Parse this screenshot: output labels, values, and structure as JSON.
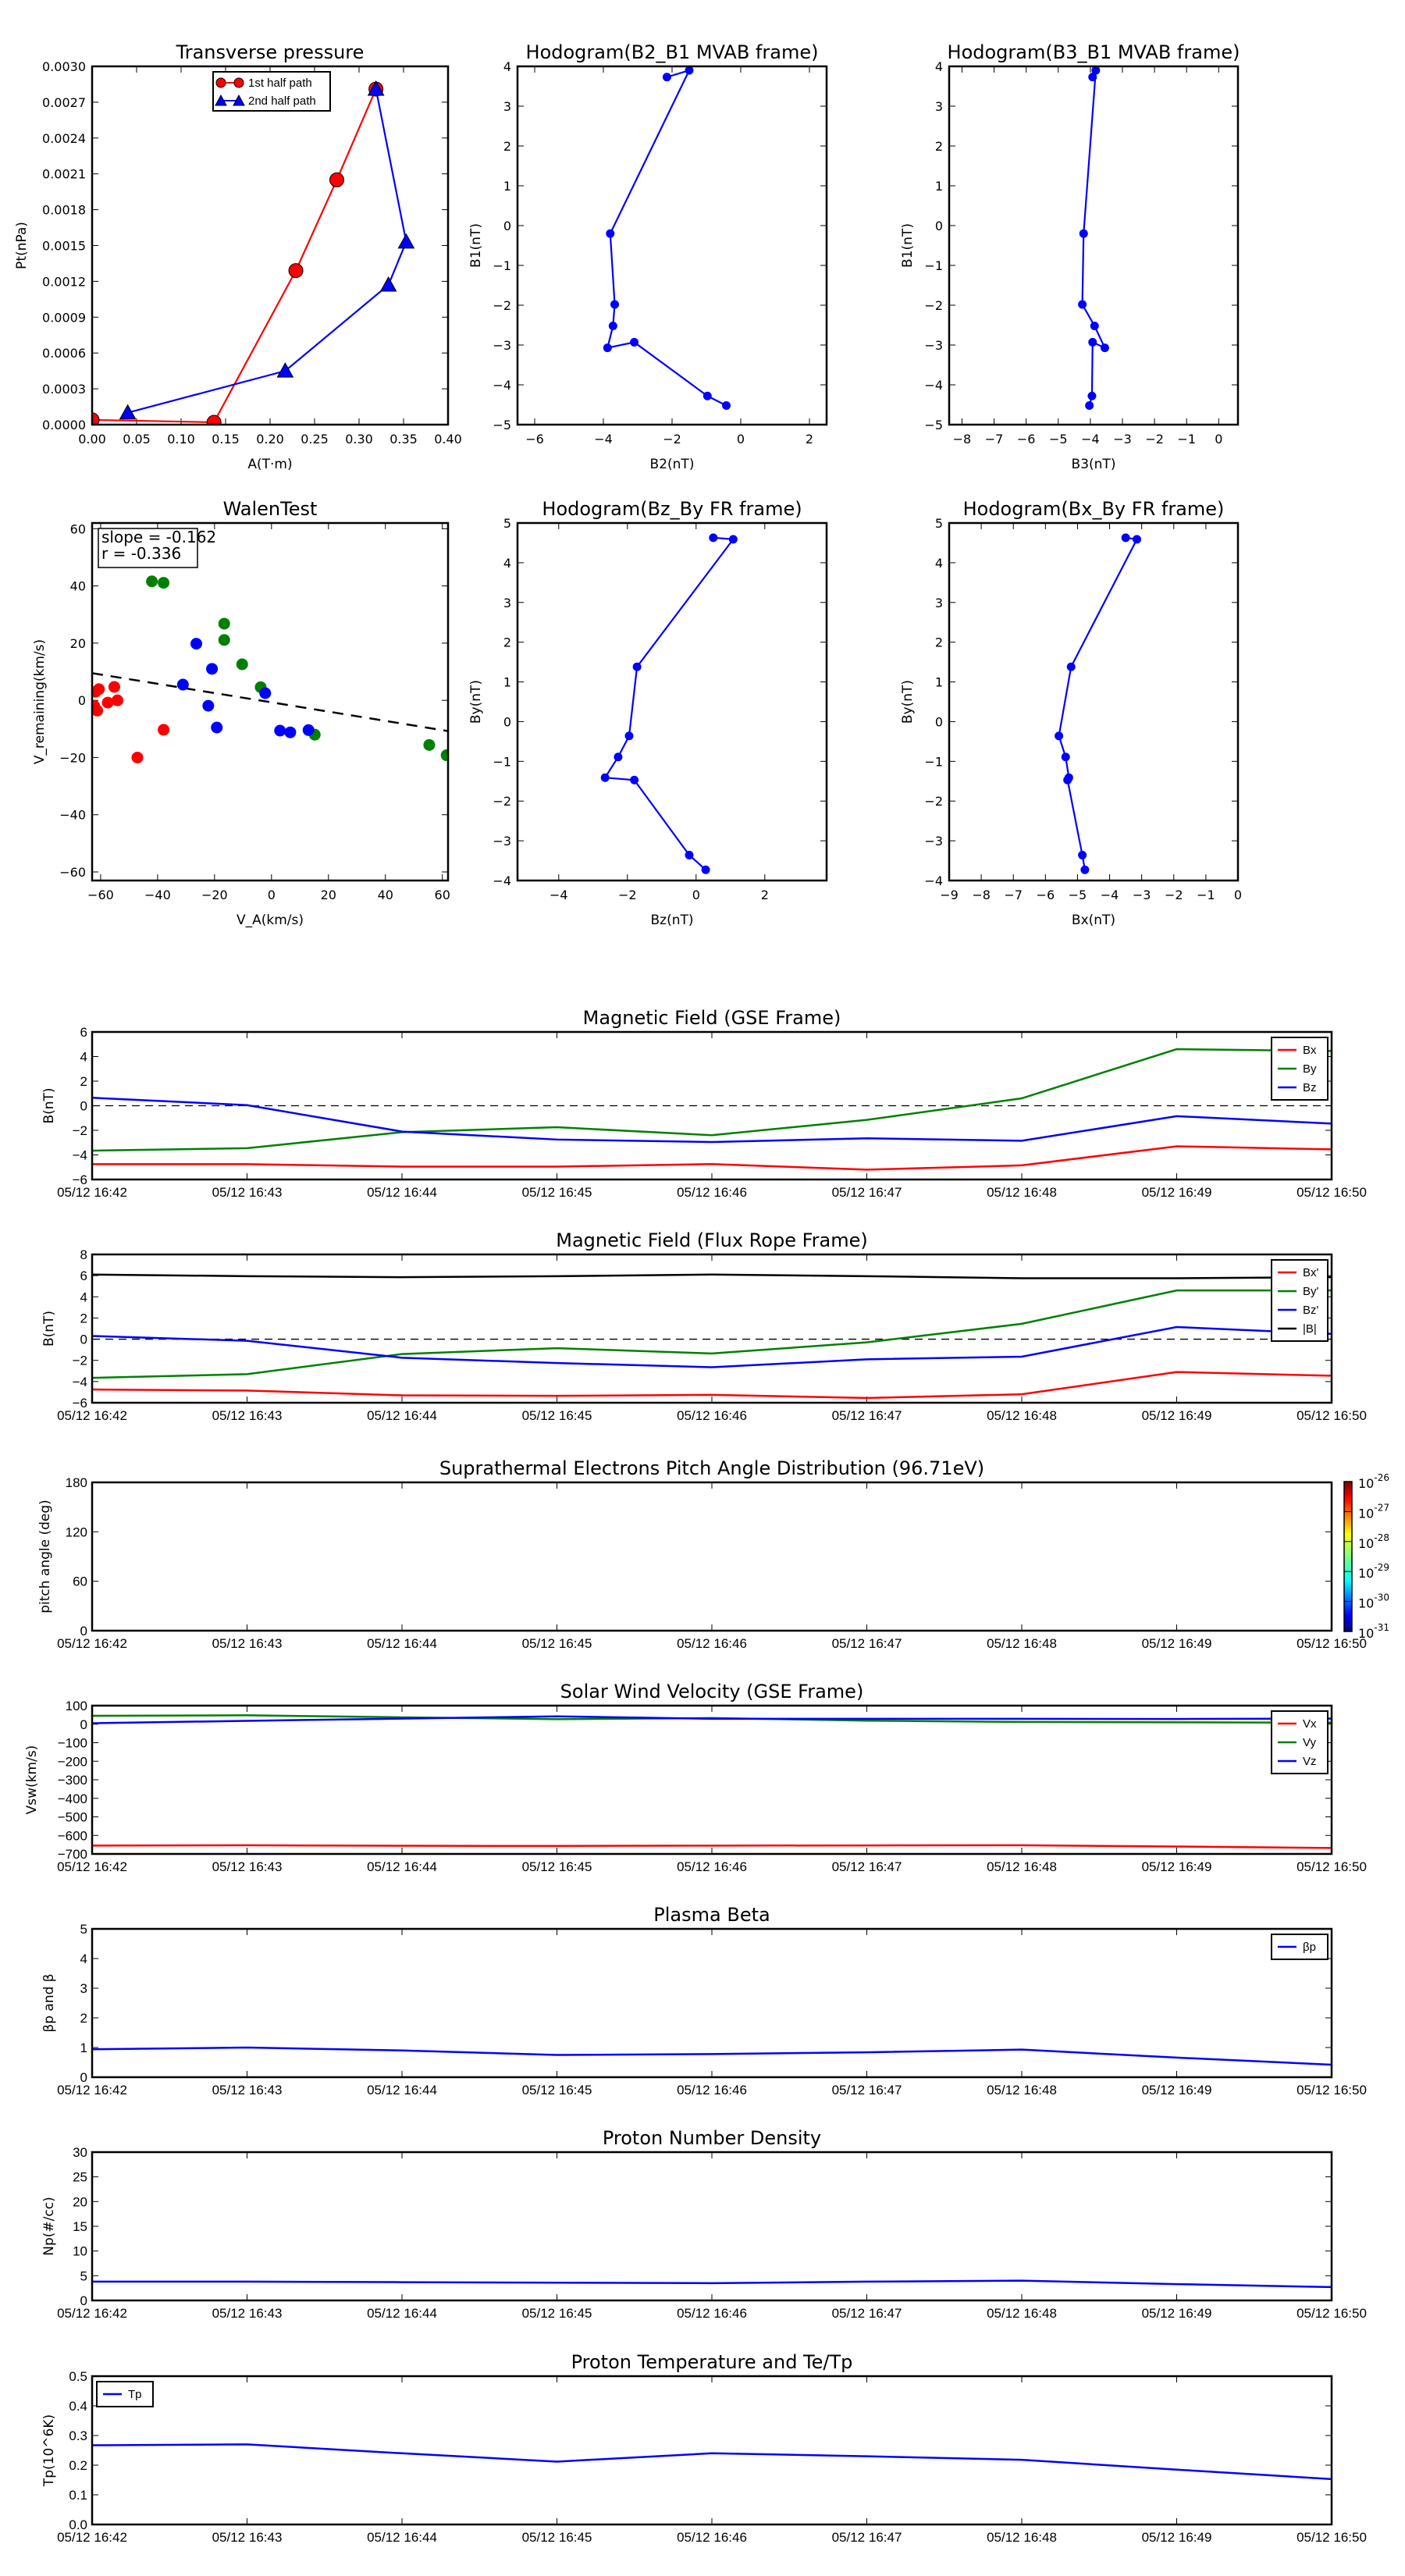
{
  "figure": {
    "description": "Flux rope analysis figure: hodograms, Walen test, and in-situ time series"
  },
  "time_axis": {
    "ticks": [
      "05/12 16:42",
      "05/12 16:43",
      "05/12 16:44",
      "05/12 16:45",
      "05/12 16:46",
      "05/12 16:47",
      "05/12 16:48",
      "05/12 16:49",
      "05/12 16:50"
    ]
  },
  "chart_data": [
    {
      "id": "transverse-pressure",
      "type": "line",
      "title": "Transverse pressure",
      "xlabel": "A(T·m)",
      "ylabel": "Pt(nPa)",
      "xlim": [
        0.0,
        0.4
      ],
      "ylim": [
        0.0,
        0.003
      ],
      "xticks": [
        "0.00",
        "0.05",
        "0.10",
        "0.15",
        "0.20",
        "0.25",
        "0.30",
        "0.35",
        "0.40"
      ],
      "yticks": [
        "0.0000",
        "0.0003",
        "0.0006",
        "0.0009",
        "0.0012",
        "0.0015",
        "0.0018",
        "0.0021",
        "0.0024",
        "0.0027",
        "0.0030"
      ],
      "legend": "top-center",
      "series": [
        {
          "name": "1st half path",
          "color": "#ff0000",
          "marker": "circle",
          "x": [
            0.0,
            0.137,
            0.229,
            0.275,
            0.319
          ],
          "y": [
            4e-05,
            2e-05,
            0.00129,
            0.00205,
            0.00281
          ]
        },
        {
          "name": "2nd half path",
          "color": "#0000ff",
          "marker": "triangle",
          "x": [
            0.319,
            0.353,
            0.333,
            0.217,
            0.04
          ],
          "y": [
            0.00281,
            0.00153,
            0.00117,
            0.00045,
            0.0001
          ]
        }
      ]
    },
    {
      "id": "hodogram-b2-b1",
      "type": "line",
      "title": "Hodogram(B2_B1 MVAB frame)",
      "xlabel": "B2(nT)",
      "ylabel": "B1(nT)",
      "xlim": [
        -6.5,
        2.5
      ],
      "ylim": [
        -5,
        4
      ],
      "xticks": [
        "−6",
        "−4",
        "−2",
        "0",
        "2"
      ],
      "yticks": [
        "−5",
        "−4",
        "−3",
        "−2",
        "−1",
        "0",
        "1",
        "2",
        "3",
        "4"
      ],
      "series": [
        {
          "name": "B2-B1",
          "color": "#0000ff",
          "marker": "dot",
          "x": [
            -2.15,
            -1.5,
            -3.8,
            -3.67,
            -3.72,
            -3.88,
            -3.1,
            -0.97,
            -0.42
          ],
          "y": [
            3.73,
            3.9,
            -0.2,
            -1.98,
            -2.52,
            -3.07,
            -2.93,
            -4.28,
            -4.52
          ]
        }
      ]
    },
    {
      "id": "hodogram-b3-b1",
      "type": "line",
      "title": "Hodogram(B3_B1 MVAB frame)",
      "xlabel": "B3(nT)",
      "ylabel": "B1(nT)",
      "xlim": [
        -8.4,
        0.6
      ],
      "ylim": [
        -5,
        4
      ],
      "xticks": [
        "−8",
        "−7",
        "−6",
        "−5",
        "−4",
        "−3",
        "−2",
        "−1",
        "0"
      ],
      "yticks": [
        "−5",
        "−4",
        "−3",
        "−2",
        "−1",
        "0",
        "1",
        "2",
        "3",
        "4"
      ],
      "series": [
        {
          "name": "B3-B1",
          "color": "#0000ff",
          "marker": "dot",
          "x": [
            -3.93,
            -3.83,
            -4.21,
            -4.25,
            -3.87,
            -3.55,
            -3.93,
            -3.95,
            -4.03
          ],
          "y": [
            3.73,
            3.9,
            -0.2,
            -1.98,
            -2.52,
            -3.07,
            -2.93,
            -4.28,
            -4.52
          ]
        }
      ]
    },
    {
      "id": "walen-test",
      "type": "scatter",
      "title": "WalenTest",
      "xlabel": "V_A(km/s)",
      "ylabel": "V_remaining(km/s)",
      "xlim": [
        -63,
        62
      ],
      "ylim": [
        -63,
        62
      ],
      "xticks": [
        "−60",
        "−40",
        "−20",
        "0",
        "20",
        "40",
        "60"
      ],
      "yticks": [
        "−60",
        "−40",
        "−20",
        "0",
        "20",
        "40",
        "60"
      ],
      "annotation": {
        "slope": "slope = -0.162",
        "r": "r = -0.336"
      },
      "fit_line": {
        "slope": -0.162,
        "intercept": -0.7,
        "style": "dashed",
        "color": "#000000"
      },
      "series": [
        {
          "name": "x-component",
          "color": "#ff0000",
          "x": [
            -62.2,
            -61.8,
            -60.6,
            -61.2,
            -57.5,
            -55.2,
            -54.1,
            -47.1,
            -37.9
          ],
          "y": [
            -2.0,
            3.0,
            3.9,
            -3.6,
            -0.8,
            4.7,
            0.0,
            -20.0,
            -10.3
          ]
        },
        {
          "name": "y-component",
          "color": "#008000",
          "x": [
            -42.0,
            -37.9,
            -16.6,
            -16.6,
            -10.3,
            -3.8,
            15.2,
            55.4,
            61.5
          ],
          "y": [
            41.6,
            41.1,
            26.8,
            21.1,
            12.6,
            4.6,
            -12.0,
            -15.6,
            -19.2
          ]
        },
        {
          "name": "z-component",
          "color": "#0000ff",
          "x": [
            -31.1,
            -26.4,
            -20.9,
            -22.2,
            -19.2,
            -2.2,
            3.0,
            6.6,
            13.0
          ],
          "y": [
            5.5,
            19.8,
            11.0,
            -1.9,
            -9.5,
            2.5,
            -10.6,
            -11.2,
            -10.4
          ]
        }
      ]
    },
    {
      "id": "hodogram-bz-by",
      "type": "line",
      "title": "Hodogram(Bz_By FR frame)",
      "xlabel": "Bz(nT)",
      "ylabel": "By(nT)",
      "xlim": [
        -5.2,
        3.8
      ],
      "ylim": [
        -4,
        5
      ],
      "xticks": [
        "−4",
        "−2",
        "0",
        "2"
      ],
      "yticks": [
        "−4",
        "−3",
        "−2",
        "−1",
        "0",
        "1",
        "2",
        "3",
        "4",
        "5"
      ],
      "series": [
        {
          "name": "Bz-By",
          "color": "#0000ff",
          "marker": "dot",
          "x": [
            0.5,
            1.08,
            -1.72,
            -1.95,
            -2.27,
            -2.65,
            -1.8,
            -0.2,
            0.28
          ],
          "y": [
            4.63,
            4.59,
            1.38,
            -0.36,
            -0.89,
            -1.41,
            -1.47,
            -3.36,
            -3.73
          ]
        }
      ]
    },
    {
      "id": "hodogram-bx-by",
      "type": "line",
      "title": "Hodogram(Bx_By FR frame)",
      "xlabel": "Bx(nT)",
      "ylabel": "By(nT)",
      "xlim": [
        -9,
        0
      ],
      "ylim": [
        -4,
        5
      ],
      "xticks": [
        "−9",
        "−8",
        "−7",
        "−6",
        "−5",
        "−4",
        "−3",
        "−2",
        "−1",
        "0"
      ],
      "yticks": [
        "−4",
        "−3",
        "−2",
        "−1",
        "0",
        "1",
        "2",
        "3",
        "4",
        "5"
      ],
      "series": [
        {
          "name": "Bx-By",
          "color": "#0000ff",
          "marker": "dot",
          "x": [
            -3.5,
            -3.15,
            -5.2,
            -5.58,
            -5.37,
            -5.27,
            -5.31,
            -4.85,
            -4.77
          ],
          "y": [
            4.63,
            4.59,
            1.38,
            -0.36,
            -0.89,
            -1.41,
            -1.47,
            -3.36,
            -3.73
          ]
        }
      ]
    },
    {
      "id": "mag-gse",
      "type": "line",
      "title": "Magnetic Field (GSE Frame)",
      "ylabel": "B(nT)",
      "ylim": [
        -6,
        6
      ],
      "yticks": [
        "−6",
        "−4",
        "−2",
        "0",
        "2",
        "4",
        "6"
      ],
      "zero_line": true,
      "legend": "top-right",
      "series": [
        {
          "name": "Bx",
          "color": "#ff0000",
          "values": [
            -4.75,
            -4.75,
            -4.95,
            -4.95,
            -4.75,
            -5.2,
            -4.85,
            -3.3,
            -3.55
          ]
        },
        {
          "name": "By",
          "color": "#008000",
          "values": [
            -3.65,
            -3.45,
            -2.15,
            -1.75,
            -2.4,
            -1.15,
            0.6,
            4.6,
            4.45
          ]
        },
        {
          "name": "Bz",
          "color": "#0000ff",
          "values": [
            0.65,
            0.05,
            -2.1,
            -2.75,
            -2.95,
            -2.65,
            -2.85,
            -0.85,
            -1.45
          ]
        }
      ]
    },
    {
      "id": "mag-fr",
      "type": "line",
      "title": "Magnetic Field (Flux Rope Frame)",
      "ylabel": "B(nT)",
      "ylim": [
        -6,
        8
      ],
      "yticks": [
        "−6",
        "−4",
        "−2",
        "0",
        "2",
        "4",
        "6",
        "8"
      ],
      "zero_line": true,
      "legend": "top-right",
      "series": [
        {
          "name": "Bx'",
          "color": "#ff0000",
          "values": [
            -4.75,
            -4.85,
            -5.3,
            -5.35,
            -5.25,
            -5.55,
            -5.2,
            -3.1,
            -3.45
          ]
        },
        {
          "name": "By'",
          "color": "#008000",
          "values": [
            -3.65,
            -3.3,
            -1.4,
            -0.85,
            -1.35,
            -0.3,
            1.45,
            4.6,
            4.6
          ]
        },
        {
          "name": "Bz'",
          "color": "#0000ff",
          "values": [
            0.3,
            -0.15,
            -1.75,
            -2.25,
            -2.65,
            -1.9,
            -1.65,
            1.15,
            0.5
          ]
        },
        {
          "name": "|B|",
          "color": "#000000",
          "values": [
            6.1,
            5.95,
            5.85,
            5.95,
            6.1,
            5.95,
            5.75,
            5.75,
            5.85
          ]
        }
      ]
    },
    {
      "id": "electron-pad",
      "type": "heatmap",
      "title": "Suprathermal Electrons Pitch Angle Distribution (96.71eV)",
      "ylabel": "pitch angle (deg)",
      "ylim": [
        0,
        180
      ],
      "yticks": [
        "0",
        "60",
        "120",
        "180"
      ],
      "colorbar": {
        "scale": "log",
        "range": [
          1e-31,
          1e-26
        ],
        "tick_base": "10",
        "tick_exponents": [
          "-26",
          "-27",
          "-28",
          "-29",
          "-30",
          "-31"
        ]
      },
      "values": []
    },
    {
      "id": "solar-wind-velocity",
      "type": "line",
      "title": "Solar Wind Velocity (GSE Frame)",
      "ylabel": "Vsw(km/s)",
      "ylim": [
        -700,
        100
      ],
      "yticks": [
        "−700",
        "−600",
        "−500",
        "−400",
        "−300",
        "−200",
        "−100",
        "0",
        "100"
      ],
      "legend": "top-right",
      "series": [
        {
          "name": "Vx",
          "color": "#ff0000",
          "values": [
            -655,
            -653,
            -656,
            -657,
            -655,
            -654,
            -653,
            -660,
            -668
          ]
        },
        {
          "name": "Vy",
          "color": "#008000",
          "values": [
            45,
            48,
            37,
            27,
            33,
            19,
            12,
            10,
            8
          ]
        },
        {
          "name": "Vz",
          "color": "#0000ff",
          "values": [
            5,
            18,
            30,
            42,
            29,
            29,
            29,
            28,
            30
          ]
        }
      ]
    },
    {
      "id": "plasma-beta",
      "type": "line",
      "title": "Plasma Beta",
      "ylabel": "βp and β",
      "ylim": [
        0,
        5
      ],
      "yticks": [
        "0",
        "1",
        "2",
        "3",
        "4",
        "5"
      ],
      "legend": "top-right",
      "series": [
        {
          "name": "βp",
          "color": "#0000ff",
          "values": [
            0.94,
            1.0,
            0.9,
            0.75,
            0.78,
            0.84,
            0.93,
            0.66,
            0.42
          ]
        }
      ]
    },
    {
      "id": "proton-density",
      "type": "line",
      "title": "Proton Number Density",
      "ylabel": "Np(#/cc)",
      "ylim": [
        0,
        30
      ],
      "yticks": [
        "0",
        "5",
        "10",
        "15",
        "20",
        "25",
        "30"
      ],
      "series": [
        {
          "name": "Np",
          "color": "#0000ff",
          "values": [
            3.8,
            3.8,
            3.7,
            3.6,
            3.5,
            3.8,
            4.0,
            3.3,
            2.7
          ]
        }
      ]
    },
    {
      "id": "proton-temperature",
      "type": "line",
      "title": "Proton Temperature and Te/Tp",
      "ylabel": "Tp(10^6K)",
      "ylim": [
        0.0,
        0.5
      ],
      "yticks": [
        "0.0",
        "0.1",
        "0.2",
        "0.3",
        "0.4",
        "0.5"
      ],
      "legend": "top-left",
      "series": [
        {
          "name": "Tp",
          "color": "#0000ff",
          "values": [
            0.267,
            0.27,
            0.24,
            0.212,
            0.24,
            0.23,
            0.218,
            0.185,
            0.153
          ]
        }
      ]
    }
  ]
}
